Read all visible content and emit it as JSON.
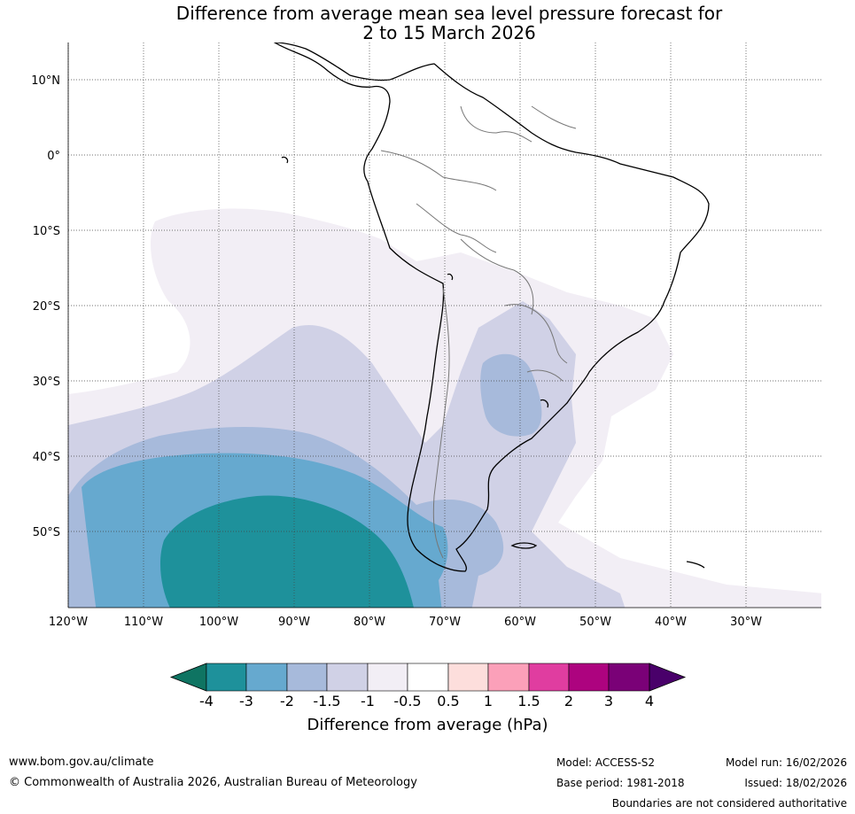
{
  "title_line1": "Difference from average mean sea level pressure forecast for",
  "title_line2": "2 to 15 March 2026",
  "map": {
    "lat_labels": [
      "10°N",
      "0°",
      "10°S",
      "20°S",
      "30°S",
      "40°S",
      "50°S"
    ],
    "lon_labels": [
      "120°W",
      "110°W",
      "100°W",
      "90°W",
      "80°W",
      "70°W",
      "60°W",
      "50°W",
      "40°W",
      "30°W"
    ],
    "lat_range": [
      -60,
      15
    ],
    "lon_range": [
      -120,
      -20
    ],
    "anomaly_centre": {
      "lat": -55,
      "lon": -92,
      "min_class": "-4 to -3"
    }
  },
  "colorbar": {
    "title": "Difference from average (hPa)",
    "ticks": [
      "-4",
      "-3",
      "-2",
      "-1.5",
      "-1",
      "-0.5",
      "0.5",
      "1",
      "1.5",
      "2",
      "3",
      "4"
    ],
    "colors": [
      "#0f7462",
      "#1e919b",
      "#66a9cf",
      "#a7badb",
      "#d0d1e6",
      "#f2eef5",
      "#ffffff",
      "#fddedc",
      "#fba0b9",
      "#e03da0",
      "#ad037f",
      "#7a0177",
      "#49006a"
    ]
  },
  "footer": {
    "website": "www.bom.gov.au/climate",
    "copyright": "© Commonwealth of Australia 2026, Australian Bureau of Meteorology",
    "model": "Model: ACCESS-S2",
    "model_run": "Model run: 16/02/2026",
    "base_period": "Base period: 1981-2018",
    "issued": "Issued: 18/02/2026",
    "disclaimer": "Boundaries are not considered authoritative"
  }
}
